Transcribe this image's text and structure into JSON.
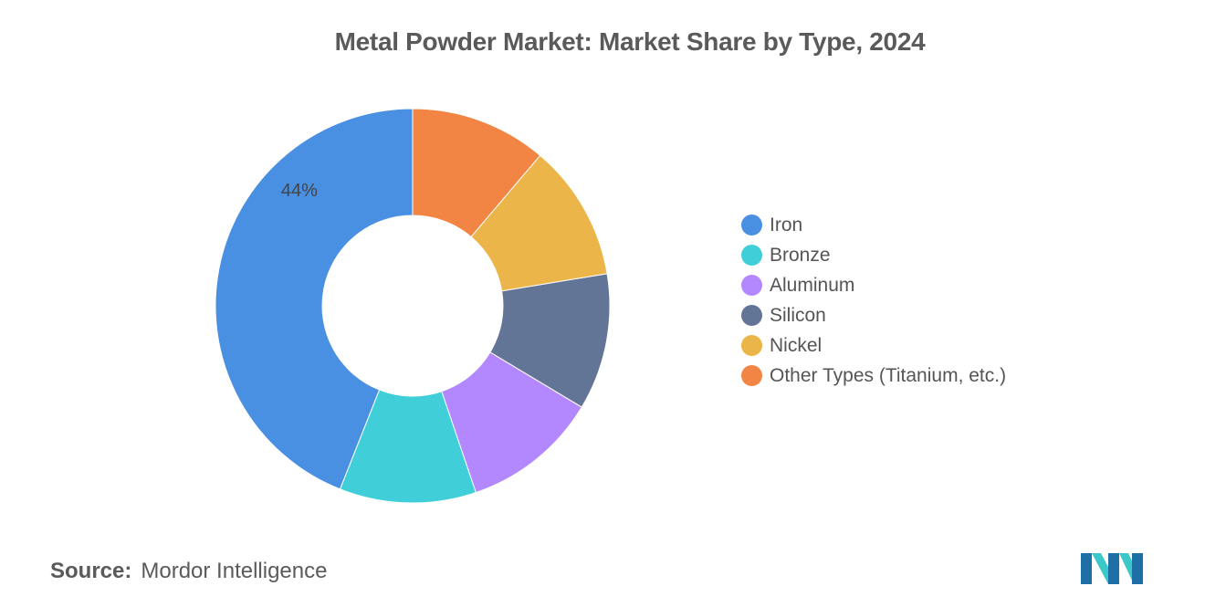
{
  "chart_data": {
    "type": "pie",
    "title": "Metal Powder Market: Market Share by Type, 2024",
    "categories": [
      "Iron",
      "Bronze",
      "Aluminum",
      "Silicon",
      "Nickel",
      "Other Types (Titanium, etc.)"
    ],
    "values": [
      44,
      11.2,
      11.2,
      11.2,
      11.2,
      11.2
    ],
    "colors": [
      "#4A90E2",
      "#40CFD9",
      "#B388FF",
      "#627597",
      "#EBB54A",
      "#F28444"
    ],
    "data_labels": [
      {
        "category": "Iron",
        "text": "44%"
      }
    ],
    "donut": true,
    "legend_position": "right"
  },
  "source": {
    "label": "Source:",
    "text": "Mordor Intelligence"
  },
  "logo": {
    "icon": "mordor-intelligence-logo",
    "colors": [
      "#1D6FA5",
      "#3CC7C9"
    ]
  }
}
